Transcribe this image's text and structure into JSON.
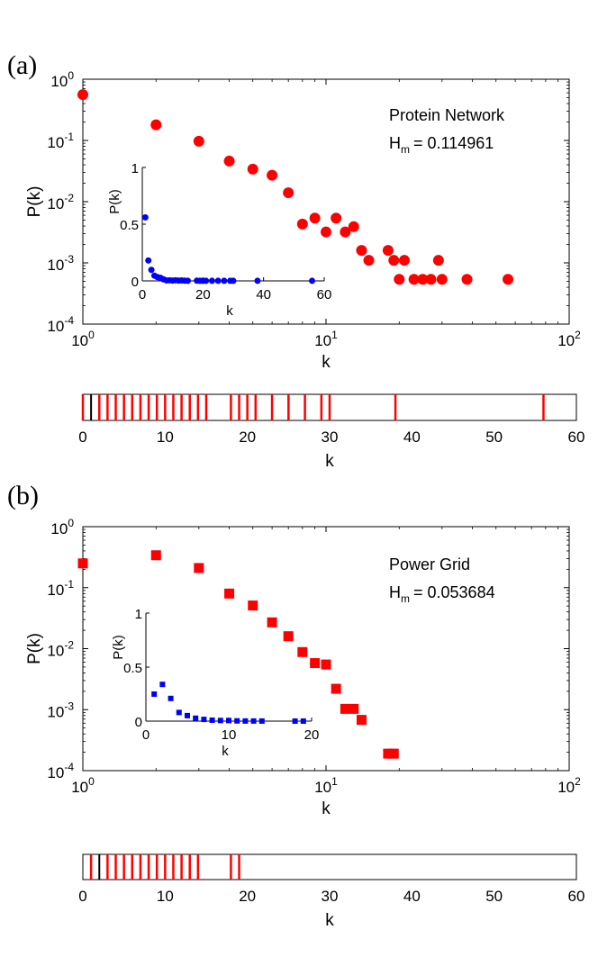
{
  "chart_data": [
    {
      "panel_label": "(a)",
      "type": "scatter",
      "scale": "log-log",
      "xlabel": "k",
      "ylabel": "P(k)",
      "xlim": [
        1,
        100
      ],
      "ylim": [
        0.0001,
        1
      ],
      "xticks": [
        {
          "base": "10",
          "exp": "0",
          "value": 1
        },
        {
          "base": "10",
          "exp": "1",
          "value": 10
        },
        {
          "base": "10",
          "exp": "2",
          "value": 100
        }
      ],
      "yticks": [
        {
          "base": "10",
          "exp": "0",
          "value": 1
        },
        {
          "base": "10",
          "exp": "-1",
          "value": 0.1
        },
        {
          "base": "10",
          "exp": "-2",
          "value": 0.01
        },
        {
          "base": "10",
          "exp": "-3",
          "value": 0.001
        },
        {
          "base": "10",
          "exp": "-4",
          "value": 0.0001
        }
      ],
      "marker": "circle",
      "color": "#ff0000",
      "annotation_name": "Protein Network",
      "annotation_h_symbol": "H",
      "annotation_h_sub": "m",
      "annotation_h_value": "= 0.114961",
      "points": [
        {
          "x": 1,
          "y": 0.56
        },
        {
          "x": 2,
          "y": 0.18
        },
        {
          "x": 3,
          "y": 0.097
        },
        {
          "x": 4,
          "y": 0.046
        },
        {
          "x": 5,
          "y": 0.034
        },
        {
          "x": 6,
          "y": 0.027
        },
        {
          "x": 7,
          "y": 0.014
        },
        {
          "x": 8,
          "y": 0.0043
        },
        {
          "x": 9,
          "y": 0.0054
        },
        {
          "x": 10,
          "y": 0.0032
        },
        {
          "x": 11,
          "y": 0.0054
        },
        {
          "x": 12,
          "y": 0.0032
        },
        {
          "x": 13,
          "y": 0.0039
        },
        {
          "x": 14,
          "y": 0.0016
        },
        {
          "x": 15,
          "y": 0.0011
        },
        {
          "x": 18,
          "y": 0.0016
        },
        {
          "x": 19,
          "y": 0.0011
        },
        {
          "x": 20,
          "y": 0.00054
        },
        {
          "x": 21,
          "y": 0.0011
        },
        {
          "x": 23,
          "y": 0.00054
        },
        {
          "x": 25,
          "y": 0.00054
        },
        {
          "x": 27,
          "y": 0.00054
        },
        {
          "x": 29,
          "y": 0.0011
        },
        {
          "x": 30,
          "y": 0.00054
        },
        {
          "x": 38,
          "y": 0.00054
        },
        {
          "x": 56,
          "y": 0.00054
        }
      ],
      "inset": {
        "type": "scatter",
        "xlabel": "k",
        "ylabel": "P(k)",
        "xlim": [
          0,
          60
        ],
        "ylim": [
          0,
          1
        ],
        "xticks": [
          "0",
          "20",
          "40",
          "60"
        ],
        "yticks": [
          "0",
          "0.5",
          "1"
        ],
        "xtick_values": [
          0,
          20,
          40,
          60
        ],
        "ytick_values": [
          0,
          0.5,
          1
        ],
        "color": "#0000ff",
        "marker": "circle"
      },
      "strip": {
        "xlim": [
          0,
          60
        ],
        "xlabel": "k",
        "xticks": [
          "0",
          "10",
          "20",
          "30",
          "40",
          "50",
          "60"
        ],
        "xtick_values": [
          0,
          10,
          20,
          30,
          40,
          50,
          60
        ],
        "black_lines": [
          1
        ],
        "red_lines": [
          0,
          2,
          3,
          4,
          5,
          6,
          7,
          8,
          9,
          10,
          11,
          12,
          13,
          14,
          15,
          18,
          19,
          20,
          21,
          23,
          25,
          27,
          29,
          30,
          38,
          56
        ]
      }
    },
    {
      "panel_label": "(b)",
      "type": "scatter",
      "scale": "log-log",
      "xlabel": "k",
      "ylabel": "P(k)",
      "xlim": [
        1,
        100
      ],
      "ylim": [
        0.0001,
        1
      ],
      "xticks": [
        {
          "base": "10",
          "exp": "0",
          "value": 1
        },
        {
          "base": "10",
          "exp": "1",
          "value": 10
        },
        {
          "base": "10",
          "exp": "2",
          "value": 100
        }
      ],
      "yticks": [
        {
          "base": "10",
          "exp": "0",
          "value": 1
        },
        {
          "base": "10",
          "exp": "-1",
          "value": 0.1
        },
        {
          "base": "10",
          "exp": "-2",
          "value": 0.01
        },
        {
          "base": "10",
          "exp": "-3",
          "value": 0.001
        },
        {
          "base": "10",
          "exp": "-4",
          "value": 0.0001
        }
      ],
      "marker": "square",
      "color": "#ff0000",
      "annotation_name": "Power Grid",
      "annotation_h_symbol": "H",
      "annotation_h_sub": "m",
      "annotation_h_value": "= 0.053684",
      "points": [
        {
          "x": 1,
          "y": 0.25
        },
        {
          "x": 2,
          "y": 0.34
        },
        {
          "x": 3,
          "y": 0.21
        },
        {
          "x": 4,
          "y": 0.08
        },
        {
          "x": 5,
          "y": 0.051
        },
        {
          "x": 6,
          "y": 0.027
        },
        {
          "x": 7,
          "y": 0.016
        },
        {
          "x": 8,
          "y": 0.0088
        },
        {
          "x": 9,
          "y": 0.0058
        },
        {
          "x": 10,
          "y": 0.0055
        },
        {
          "x": 11,
          "y": 0.0022
        },
        {
          "x": 12,
          "y": 0.00103
        },
        {
          "x": 13,
          "y": 0.00103
        },
        {
          "x": 14,
          "y": 0.00068
        },
        {
          "x": 18,
          "y": 0.00019
        },
        {
          "x": 19,
          "y": 0.00019
        }
      ],
      "inset": {
        "type": "scatter",
        "xlabel": "k",
        "ylabel": "P(k)",
        "xlim": [
          0,
          20
        ],
        "ylim": [
          0,
          1
        ],
        "xticks": [
          "0",
          "10",
          "20"
        ],
        "yticks": [
          "0",
          "0.5",
          "1"
        ],
        "xtick_values": [
          0,
          10,
          20
        ],
        "ytick_values": [
          0,
          0.5,
          1
        ],
        "color": "#0000ff",
        "marker": "square"
      },
      "strip": {
        "xlim": [
          0,
          60
        ],
        "xlabel": "k",
        "xticks": [
          "0",
          "10",
          "20",
          "30",
          "40",
          "50",
          "60"
        ],
        "xtick_values": [
          0,
          10,
          20,
          30,
          40,
          50,
          60
        ],
        "black_lines": [
          2
        ],
        "red_lines": [
          1,
          3,
          4,
          5,
          6,
          7,
          8,
          9,
          10,
          11,
          12,
          13,
          14,
          18,
          19
        ]
      }
    }
  ]
}
